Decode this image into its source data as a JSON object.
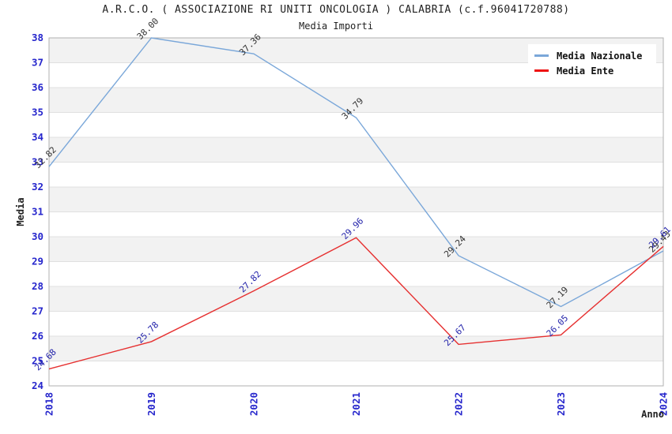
{
  "title": "A.R.C.O. ( ASSOCIAZIONE RI UNITI ONCOLOGIA ) CALABRIA (c.f.96041720788)",
  "subtitle": "Media Importi",
  "legend": {
    "items": [
      {
        "label": "Media Nazionale",
        "color": "#7aa7d9"
      },
      {
        "label": "Media Ente",
        "color": "#ee1111"
      }
    ]
  },
  "chart_data": {
    "type": "line",
    "title": "A.R.C.O. ( ASSOCIAZIONE RI UNITI ONCOLOGIA ) CALABRIA (c.f.96041720788)",
    "subtitle": "Media Importi",
    "categories": [
      "2018",
      "2019",
      "2020",
      "2021",
      "2022",
      "2023",
      "2024"
    ],
    "series": [
      {
        "name": "Media Nazionale",
        "color": "#7aa7d9",
        "label_color": "#333333",
        "values": [
          32.82,
          38.0,
          37.36,
          34.79,
          29.24,
          27.19,
          29.43
        ]
      },
      {
        "name": "Media Ente",
        "color": "#e63030",
        "label_color": "#2222aa",
        "values": [
          24.68,
          25.78,
          27.82,
          29.96,
          25.67,
          26.05,
          29.61
        ]
      }
    ],
    "xlabel": "Anno",
    "ylabel": "Media",
    "ylim": [
      24,
      38
    ],
    "ytick_step": 1,
    "grid": true,
    "legend_position": "top-right",
    "colors": {
      "tick_label": "#2626cc",
      "axis_title": "#222222",
      "band_even": "#ffffff",
      "band_odd": "#f2f2f2",
      "gridline": "#e0e0e0",
      "frame": "#b0b0b0"
    }
  }
}
